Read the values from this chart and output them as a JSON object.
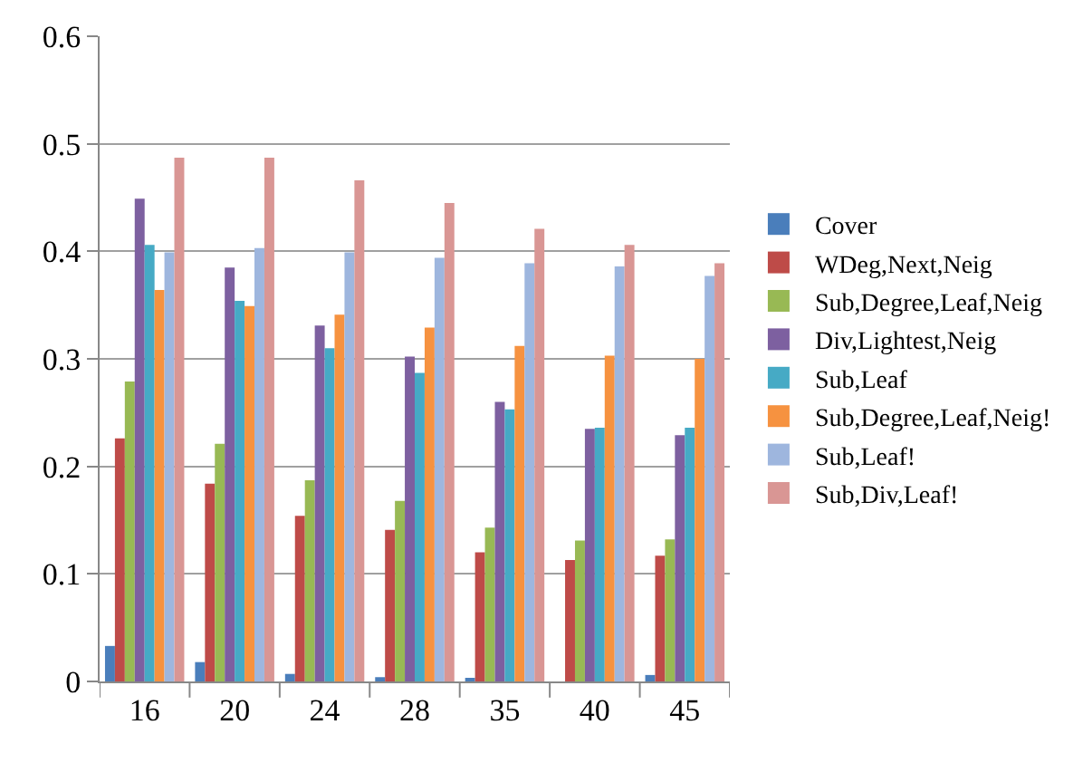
{
  "chart_data": {
    "type": "bar",
    "categories": [
      "16",
      "20",
      "24",
      "28",
      "35",
      "40",
      "45"
    ],
    "series": [
      {
        "name": "Cover",
        "color": "#4a7ebb",
        "values": [
          0.033,
          0.018,
          0.007,
          0.004,
          0.002,
          0,
          0.006
        ]
      },
      {
        "name": "WDeg,Next,Neig",
        "color": "#be4b48",
        "values": [
          0.226,
          0.184,
          0.154,
          0.141,
          0.12,
          0.113,
          0.117
        ]
      },
      {
        "name": "Sub,Degree,Leaf,Neig",
        "color": "#98b954",
        "values": [
          0.279,
          0.221,
          0.187,
          0.168,
          0.143,
          0.131,
          0.132
        ]
      },
      {
        "name": "Div,Lightest,Neig",
        "color": "#7d60a0",
        "values": [
          0.449,
          0.385,
          0.331,
          0.302,
          0.26,
          0.235,
          0.229
        ]
      },
      {
        "name": "Sub,Leaf",
        "color": "#46aac5",
        "values": [
          0.406,
          0.354,
          0.31,
          0.287,
          0.253,
          0.236,
          0.236
        ]
      },
      {
        "name": "Sub,Degree,Leaf,Neig!",
        "color": "#f69240",
        "values": [
          0.364,
          0.349,
          0.341,
          0.329,
          0.312,
          0.303,
          0.3
        ]
      },
      {
        "name": "Sub,Leaf!",
        "color": "#9eb6de",
        "values": [
          0.399,
          0.403,
          0.399,
          0.394,
          0.389,
          0.386,
          0.377
        ]
      },
      {
        "name": "Sub,Div,Leaf!",
        "color": "#d99694",
        "values": [
          0.487,
          0.487,
          0.466,
          0.445,
          0.421,
          0.406,
          0.389
        ]
      }
    ],
    "ylim": [
      0,
      0.6
    ],
    "yticks": [
      {
        "value": 0,
        "label": "0"
      },
      0.1,
      0.2,
      0.3,
      0.4,
      0.5,
      0.6
    ],
    "grid": "y",
    "legend": "right"
  }
}
